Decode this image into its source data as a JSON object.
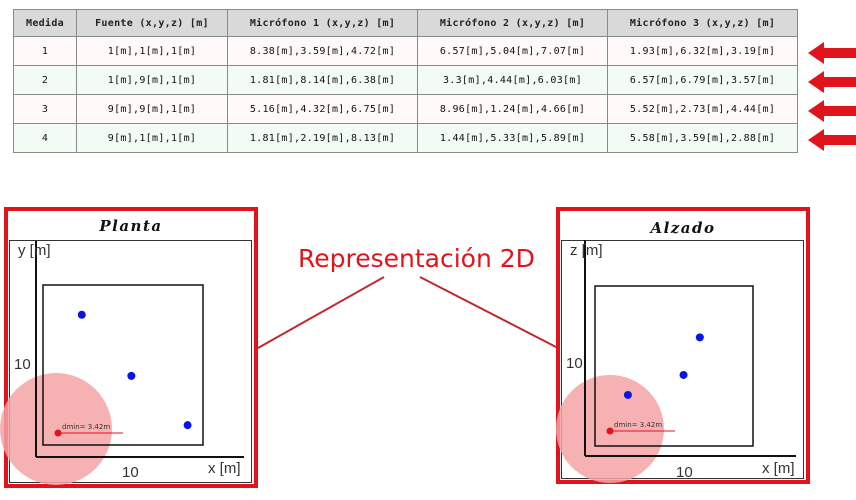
{
  "table": {
    "headers": [
      "Medida",
      "Fuente (x,y,z) [m]",
      "Micrófono 1 (x,y,z) [m]",
      "Micrófono 2 (x,y,z) [m]",
      "Micrófono 3 (x,y,z) [m]"
    ],
    "rows": [
      [
        "1",
        "1[m],1[m],1[m]",
        "8.38[m],3.59[m],4.72[m]",
        "6.57[m],5.04[m],7.07[m]",
        "1.93[m],6.32[m],3.19[m]"
      ],
      [
        "2",
        "1[m],9[m],1[m]",
        "1.81[m],8.14[m],6.38[m]",
        "3.3[m],4.44[m],6.03[m]",
        "6.57[m],6.79[m],3.57[m]"
      ],
      [
        "3",
        "9[m],9[m],1[m]",
        "5.16[m],4.32[m],6.75[m]",
        "8.96[m],1.24[m],4.66[m]",
        "5.52[m],2.73[m],4.44[m]"
      ],
      [
        "4",
        "9[m],1[m],1[m]",
        "1.81[m],2.19[m],8.13[m]",
        "1.44[m],5.33[m],5.89[m]",
        "5.58[m],3.59[m],2.88[m]"
      ]
    ]
  },
  "label": "Representación 2D",
  "colors": {
    "accent": "#e1141c",
    "mic": "#0a14e6",
    "source": "#e1141c",
    "zone": "#f5a3a6"
  },
  "plants": {
    "title": "Planta",
    "ylabel": "y [m]",
    "xlabel": "x [m]",
    "ytick": "10",
    "xtick": "10",
    "dmin": "dmin= 3.42m",
    "mics": [
      [
        1.81,
        8.14
      ],
      [
        5.16,
        4.32
      ],
      [
        8.96,
        1.24
      ]
    ]
  },
  "alzado": {
    "title": "Alzado",
    "ylabel": "z [m]",
    "xlabel": "x [m]",
    "ytick": "10",
    "xtick": "10",
    "dmin": "dmin= 3.42m",
    "mics": [
      [
        6.57,
        6.79
      ],
      [
        5.52,
        4.44
      ],
      [
        1.93,
        3.19
      ]
    ]
  }
}
